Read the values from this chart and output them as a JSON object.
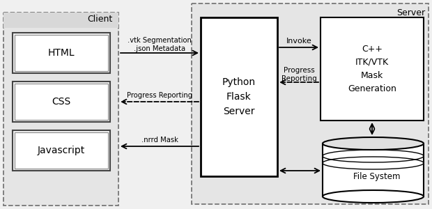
{
  "bg_color": "#f0f0f0",
  "white": "#ffffff",
  "black": "#000000",
  "box_fill": "#f5f5f5",
  "header_fill": "#e0e0e0",
  "server_fill": "#e8e8e8",
  "client_label": "Client",
  "server_label": "Server",
  "html_label": "HTML",
  "css_label": "CSS",
  "js_label": "Javascript",
  "flask_label": "Python\nFlask\nServer",
  "cpp_label": "C++\nITK/VTK\nMask\nGeneration",
  "fs_label": "File System",
  "arrow1_label": ".vtk Segmentation\n.json Metadata",
  "arrow2_label": "Progress Reporting",
  "arrow3_label": ".nrrd Mask",
  "invoke_label": "Invoke",
  "progress_label": "Progress\nReporting"
}
